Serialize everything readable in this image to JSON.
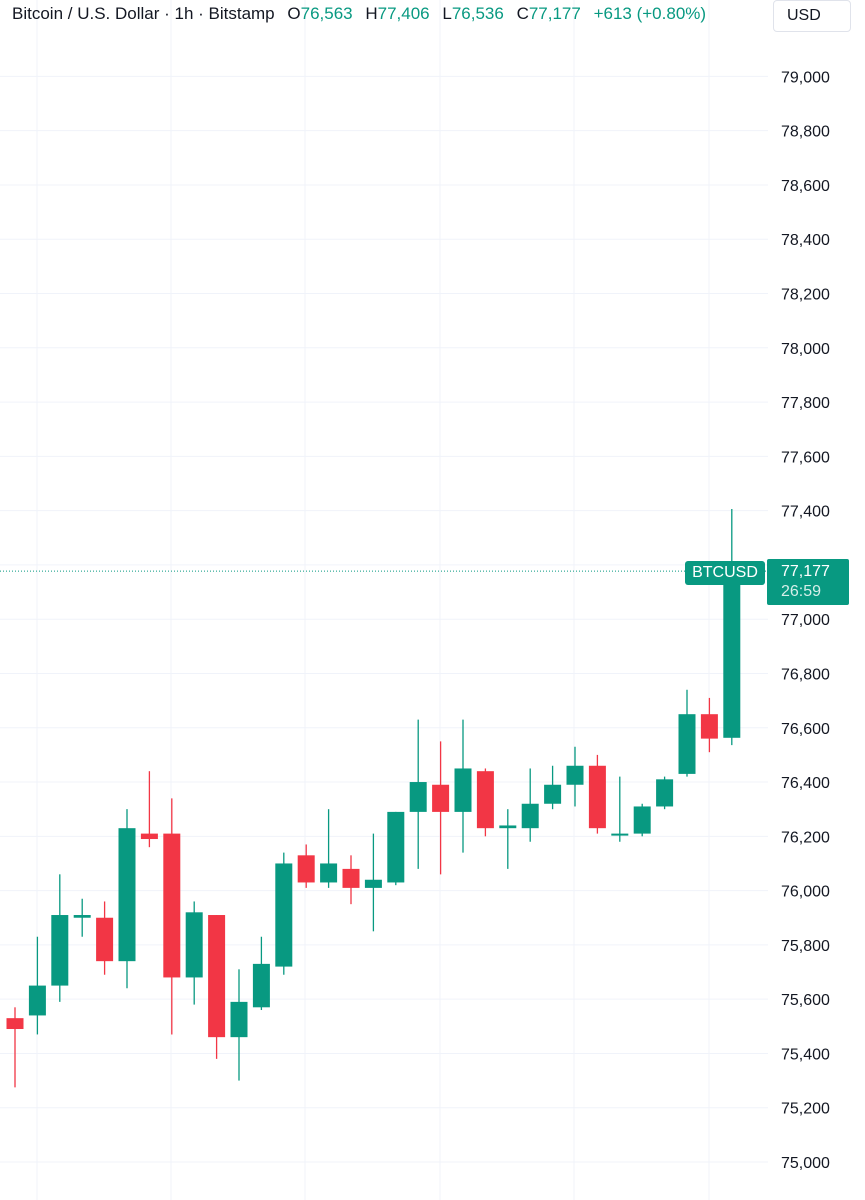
{
  "header": {
    "symbol_title": "Bitcoin / U.S. Dollar · 1h · Bitstamp",
    "o_label": "O",
    "o_value": "76,563",
    "h_label": "H",
    "h_value": "77,406",
    "l_label": "L",
    "l_value": "76,536",
    "c_label": "C",
    "c_value": "77,177",
    "change": "+613 (+0.80%)"
  },
  "currency_button": "USD",
  "last_price": {
    "symbol": "BTCUSD",
    "price": "77,177",
    "countdown": "26:59"
  },
  "colors": {
    "up": "#089981",
    "down": "#f23645",
    "grid": "#f0f3fa",
    "text": "#131722"
  },
  "chart_data": {
    "type": "candlestick",
    "title": "Bitcoin / U.S. Dollar · 1h · Bitstamp",
    "interval": "1h",
    "ylim": [
      74900,
      79200
    ],
    "y_ticks": [
      "75,000",
      "75,200",
      "75,400",
      "75,600",
      "75,800",
      "76,000",
      "76,200",
      "76,400",
      "76,600",
      "76,800",
      "77,000",
      "77,200",
      "77,400",
      "77,600",
      "77,800",
      "78,000",
      "78,200",
      "78,400",
      "78,600",
      "78,800",
      "79,000"
    ],
    "grid": true,
    "candles": [
      {
        "o": 75530,
        "h": 75570,
        "l": 75275,
        "c": 75490
      },
      {
        "o": 75540,
        "h": 75830,
        "l": 75470,
        "c": 75650
      },
      {
        "o": 75650,
        "h": 76060,
        "l": 75590,
        "c": 75910
      },
      {
        "o": 75900,
        "h": 75970,
        "l": 75830,
        "c": 75910
      },
      {
        "o": 75900,
        "h": 75960,
        "l": 75690,
        "c": 75740
      },
      {
        "o": 75740,
        "h": 76300,
        "l": 75640,
        "c": 76230
      },
      {
        "o": 76210,
        "h": 76440,
        "l": 76160,
        "c": 76190
      },
      {
        "o": 76210,
        "h": 76340,
        "l": 75470,
        "c": 75680
      },
      {
        "o": 75680,
        "h": 75960,
        "l": 75580,
        "c": 75920
      },
      {
        "o": 75910,
        "h": 75910,
        "l": 75380,
        "c": 75460
      },
      {
        "o": 75460,
        "h": 75710,
        "l": 75300,
        "c": 75590
      },
      {
        "o": 75570,
        "h": 75830,
        "l": 75560,
        "c": 75730
      },
      {
        "o": 75720,
        "h": 76140,
        "l": 75690,
        "c": 76100
      },
      {
        "o": 76130,
        "h": 76170,
        "l": 76010,
        "c": 76030
      },
      {
        "o": 76030,
        "h": 76300,
        "l": 76010,
        "c": 76100
      },
      {
        "o": 76080,
        "h": 76130,
        "l": 75950,
        "c": 76010
      },
      {
        "o": 76010,
        "h": 76210,
        "l": 75850,
        "c": 76040
      },
      {
        "o": 76030,
        "h": 76290,
        "l": 76020,
        "c": 76290
      },
      {
        "o": 76290,
        "h": 76630,
        "l": 76080,
        "c": 76400
      },
      {
        "o": 76390,
        "h": 76550,
        "l": 76060,
        "c": 76290
      },
      {
        "o": 76290,
        "h": 76630,
        "l": 76140,
        "c": 76450
      },
      {
        "o": 76440,
        "h": 76450,
        "l": 76200,
        "c": 76230
      },
      {
        "o": 76230,
        "h": 76300,
        "l": 76080,
        "c": 76240
      },
      {
        "o": 76230,
        "h": 76450,
        "l": 76180,
        "c": 76320
      },
      {
        "o": 76320,
        "h": 76460,
        "l": 76300,
        "c": 76390
      },
      {
        "o": 76390,
        "h": 76530,
        "l": 76310,
        "c": 76460
      },
      {
        "o": 76460,
        "h": 76500,
        "l": 76210,
        "c": 76230
      },
      {
        "o": 76210,
        "h": 76420,
        "l": 76180,
        "c": 76210
      },
      {
        "o": 76210,
        "h": 76320,
        "l": 76200,
        "c": 76310
      },
      {
        "o": 76310,
        "h": 76420,
        "l": 76300,
        "c": 76410
      },
      {
        "o": 76430,
        "h": 76740,
        "l": 76420,
        "c": 76650
      },
      {
        "o": 76650,
        "h": 76710,
        "l": 76510,
        "c": 76560
      },
      {
        "o": 76563,
        "h": 77406,
        "l": 76536,
        "c": 77177
      }
    ]
  }
}
